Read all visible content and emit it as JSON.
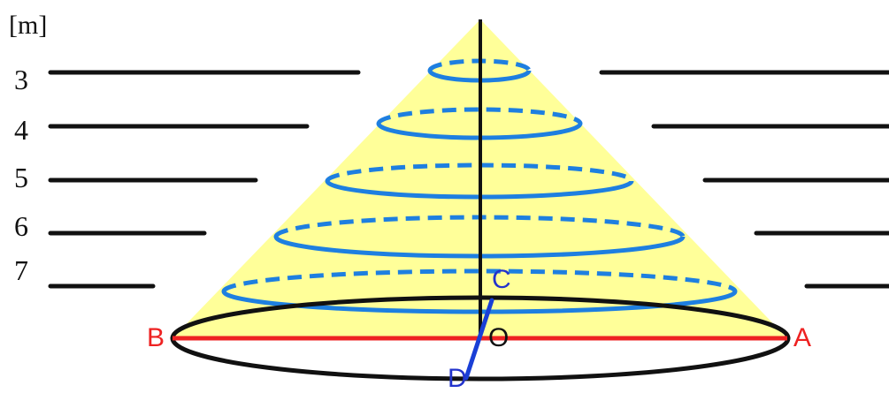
{
  "unit_label": "[m]",
  "levels": [
    "3",
    "4",
    "5",
    "6",
    "7"
  ],
  "points": {
    "A": "A",
    "B": "B",
    "C": "C",
    "D": "D",
    "O": "O"
  },
  "colors": {
    "cone_fill": "#ffff99",
    "contour": "#1e7fe0",
    "diameter": "#ee2222",
    "radius_line": "#1a3fd6",
    "point_ab": "#ee2222",
    "point_cd": "#2233cc",
    "point_o": "#111111",
    "ink": "#111111"
  }
}
